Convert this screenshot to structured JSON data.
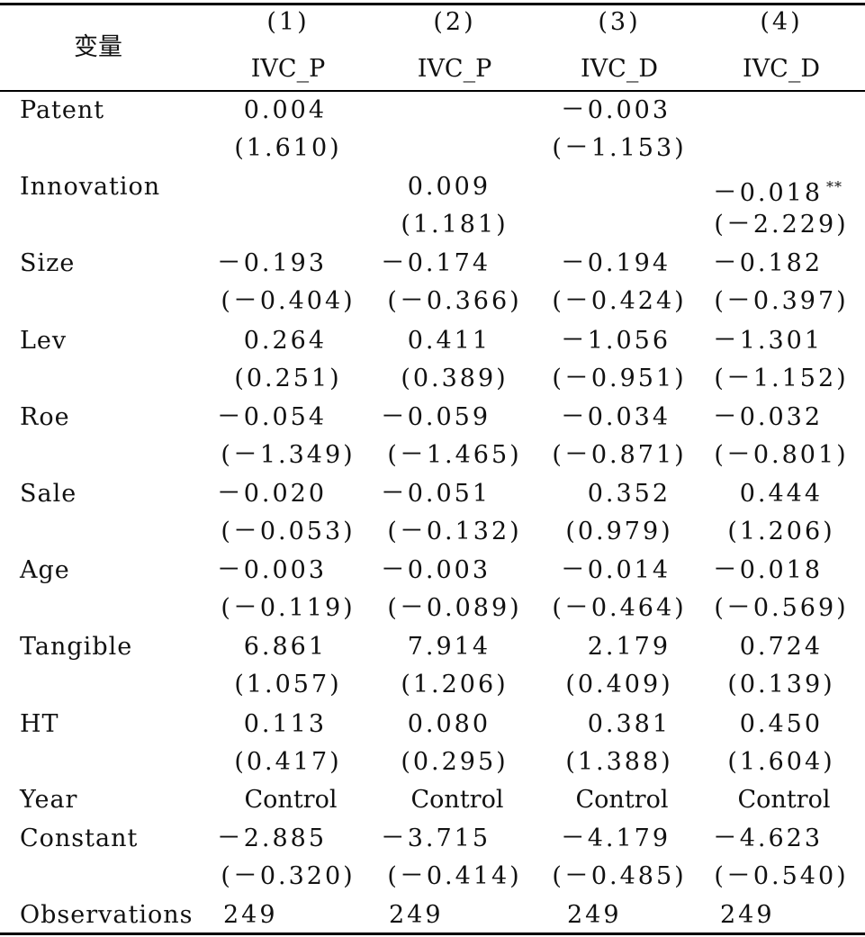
{
  "header": {
    "variable_label": "变量",
    "columns": [
      {
        "number": "(1)",
        "dep_var": "IVC_P"
      },
      {
        "number": "(2)",
        "dep_var": "IVC_P"
      },
      {
        "number": "(3)",
        "dep_var": "IVC_D"
      },
      {
        "number": "(4)",
        "dep_var": "IVC_D"
      }
    ]
  },
  "rows": [
    {
      "label": "Patent",
      "coef": [
        "0.004",
        "",
        "－0.003",
        ""
      ],
      "t": [
        "(1.610)",
        "",
        "(－1.153)",
        ""
      ]
    },
    {
      "label": "Innovation",
      "coef": [
        "",
        "0.009",
        "",
        "－0.018"
      ],
      "stars": [
        "",
        "",
        "",
        "**"
      ],
      "t": [
        "",
        "(1.181)",
        "",
        "(－2.229)"
      ]
    },
    {
      "label": "Size",
      "coef": [
        "－0.193",
        "－0.174",
        "－0.194",
        "－0.182"
      ],
      "t": [
        "(－0.404)",
        "(－0.366)",
        "(－0.424)",
        "(－0.397)"
      ]
    },
    {
      "label": "Lev",
      "coef": [
        "0.264",
        "0.411",
        "－1.056",
        "－1.301"
      ],
      "t": [
        "(0.251)",
        "(0.389)",
        "(－0.951)",
        "(－1.152)"
      ]
    },
    {
      "label": "Roe",
      "coef": [
        "－0.054",
        "－0.059",
        "－0.034",
        "－0.032"
      ],
      "t": [
        "(－1.349)",
        "(－1.465)",
        "(－0.871)",
        "(－0.801)"
      ]
    },
    {
      "label": "Sale",
      "coef": [
        "－0.020",
        "－0.051",
        "0.352",
        "0.444"
      ],
      "t": [
        "(－0.053)",
        "(－0.132)",
        "(0.979)",
        "(1.206)"
      ]
    },
    {
      "label": "Age",
      "coef": [
        "－0.003",
        "－0.003",
        "－0.014",
        "－0.018"
      ],
      "t": [
        "(－0.119)",
        "(－0.089)",
        "(－0.464)",
        "(－0.569)"
      ]
    },
    {
      "label": "Tangible",
      "coef": [
        "6.861",
        "7.914",
        "2.179",
        "0.724"
      ],
      "t": [
        "(1.057)",
        "(1.206)",
        "(0.409)",
        "(0.139)"
      ]
    },
    {
      "label": "HT",
      "coef": [
        "0.113",
        "0.080",
        "0.381",
        "0.450"
      ],
      "t": [
        "(0.417)",
        "(0.295)",
        "(1.388)",
        "(1.604)"
      ]
    }
  ],
  "year_row": {
    "label": "Year",
    "values": [
      "Control",
      "Control",
      "Control",
      "Control"
    ]
  },
  "constant_row": {
    "label": "Constant",
    "coef": [
      "－2.885",
      "－3.715",
      "－4.179",
      "－4.623"
    ],
    "t": [
      "(－0.320)",
      "(－0.414)",
      "(－0.485)",
      "(－0.540)"
    ]
  },
  "observations_row": {
    "label": "Observations",
    "values": [
      "249",
      "249",
      "249",
      "249"
    ]
  }
}
